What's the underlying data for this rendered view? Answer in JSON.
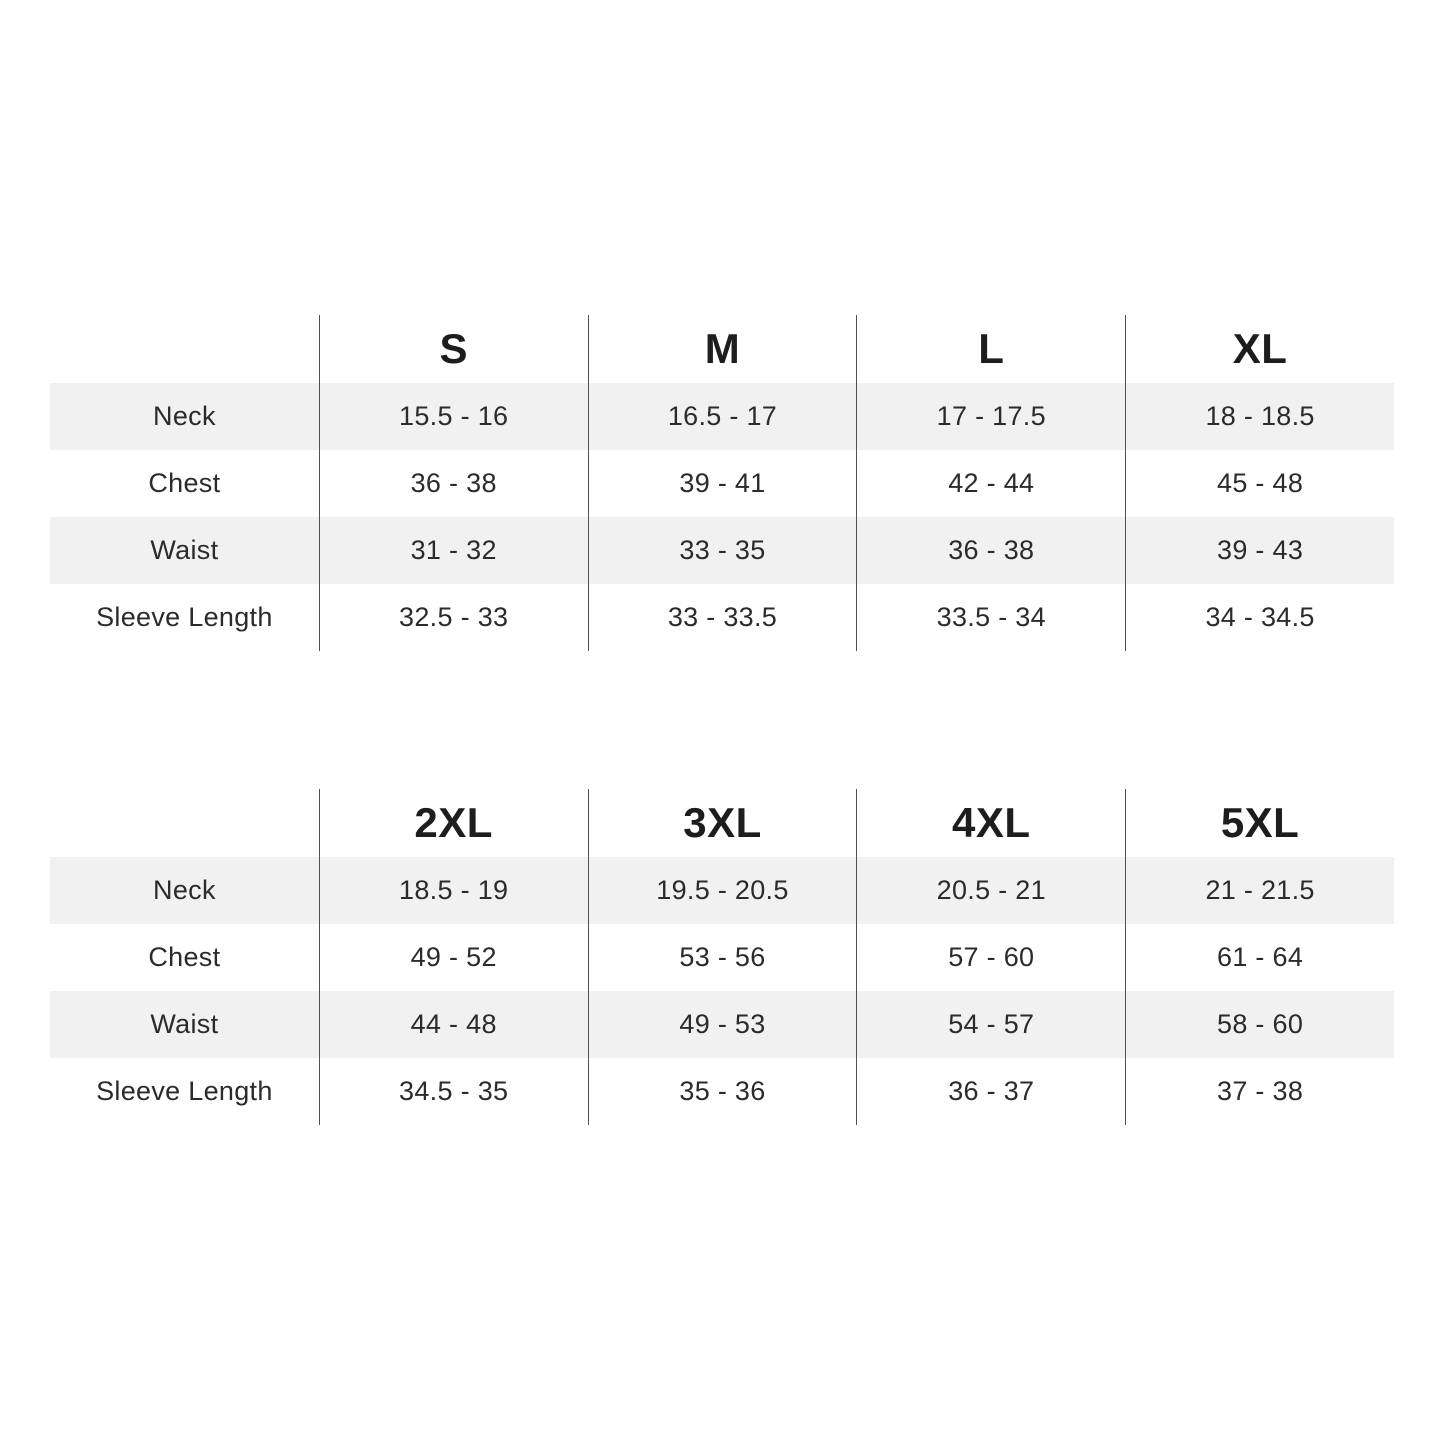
{
  "page": {
    "background": "#ffffff",
    "description": "Apparel size chart with two measurement tables"
  },
  "colors": {
    "stripe_row": "#f1f1f2",
    "column_rule": "#4f5051",
    "text": "#2b2b2b",
    "header_text": "#1d1d1d"
  },
  "chart_data": [
    {
      "type": "table",
      "title": "",
      "columns": [
        "",
        "S",
        "M",
        "L",
        "XL"
      ],
      "row_labels": [
        "Neck",
        "Chest",
        "Waist",
        "Sleeve Length"
      ],
      "rows": [
        [
          "Neck",
          "15.5 - 16",
          "16.5 - 17",
          "17 - 17.5",
          "18 - 18.5"
        ],
        [
          "Chest",
          "36 - 38",
          "39 - 41",
          "42 - 44",
          "45 - 48"
        ],
        [
          "Waist",
          "31 - 32",
          "33 - 35",
          "36 - 38",
          "39 - 43"
        ],
        [
          "Sleeve Length",
          "32.5 - 33",
          "33 - 33.5",
          "33.5 - 34",
          "34 - 34.5"
        ]
      ],
      "layout_hints": {
        "striped_rows": [
          0,
          2
        ],
        "column_rules": true,
        "grid": "vertical-only"
      }
    },
    {
      "type": "table",
      "title": "",
      "columns": [
        "",
        "2XL",
        "3XL",
        "4XL",
        "5XL"
      ],
      "row_labels": [
        "Neck",
        "Chest",
        "Waist",
        "Sleeve Length"
      ],
      "rows": [
        [
          "Neck",
          "18.5 - 19",
          "19.5 - 20.5",
          "20.5 - 21",
          "21 - 21.5"
        ],
        [
          "Chest",
          "49 - 52",
          "53 - 56",
          "57 - 60",
          "61 - 64"
        ],
        [
          "Waist",
          "44 - 48",
          "49 - 53",
          "54 - 57",
          "58 - 60"
        ],
        [
          "Sleeve Length",
          "34.5 - 35",
          "35 - 36",
          "36 - 37",
          "37 - 38"
        ]
      ],
      "layout_hints": {
        "striped_rows": [
          0,
          2
        ],
        "column_rules": true,
        "grid": "vertical-only"
      }
    }
  ],
  "tables": [
    {
      "columns": [
        "S",
        "M",
        "L",
        "XL"
      ],
      "rows": [
        {
          "label": "Neck",
          "values": [
            "15.5 - 16",
            "16.5 - 17",
            "17 - 17.5",
            "18 - 18.5"
          ]
        },
        {
          "label": "Chest",
          "values": [
            "36 - 38",
            "39 - 41",
            "42 - 44",
            "45 - 48"
          ]
        },
        {
          "label": "Waist",
          "values": [
            "31 - 32",
            "33 - 35",
            "36 - 38",
            "39 - 43"
          ]
        },
        {
          "label": "Sleeve Length",
          "values": [
            "32.5 - 33",
            "33 - 33.5",
            "33.5 - 34",
            "34 - 34.5"
          ]
        }
      ]
    },
    {
      "columns": [
        "2XL",
        "3XL",
        "4XL",
        "5XL"
      ],
      "rows": [
        {
          "label": "Neck",
          "values": [
            "18.5 - 19",
            "19.5 - 20.5",
            "20.5 - 21",
            "21 - 21.5"
          ]
        },
        {
          "label": "Chest",
          "values": [
            "49 - 52",
            "53 - 56",
            "57 - 60",
            "61 - 64"
          ]
        },
        {
          "label": "Waist",
          "values": [
            "44 - 48",
            "49 - 53",
            "54 - 57",
            "58 - 60"
          ]
        },
        {
          "label": "Sleeve Length",
          "values": [
            "34.5 - 35",
            "35 - 36",
            "36 - 37",
            "37 - 38"
          ]
        }
      ]
    }
  ]
}
